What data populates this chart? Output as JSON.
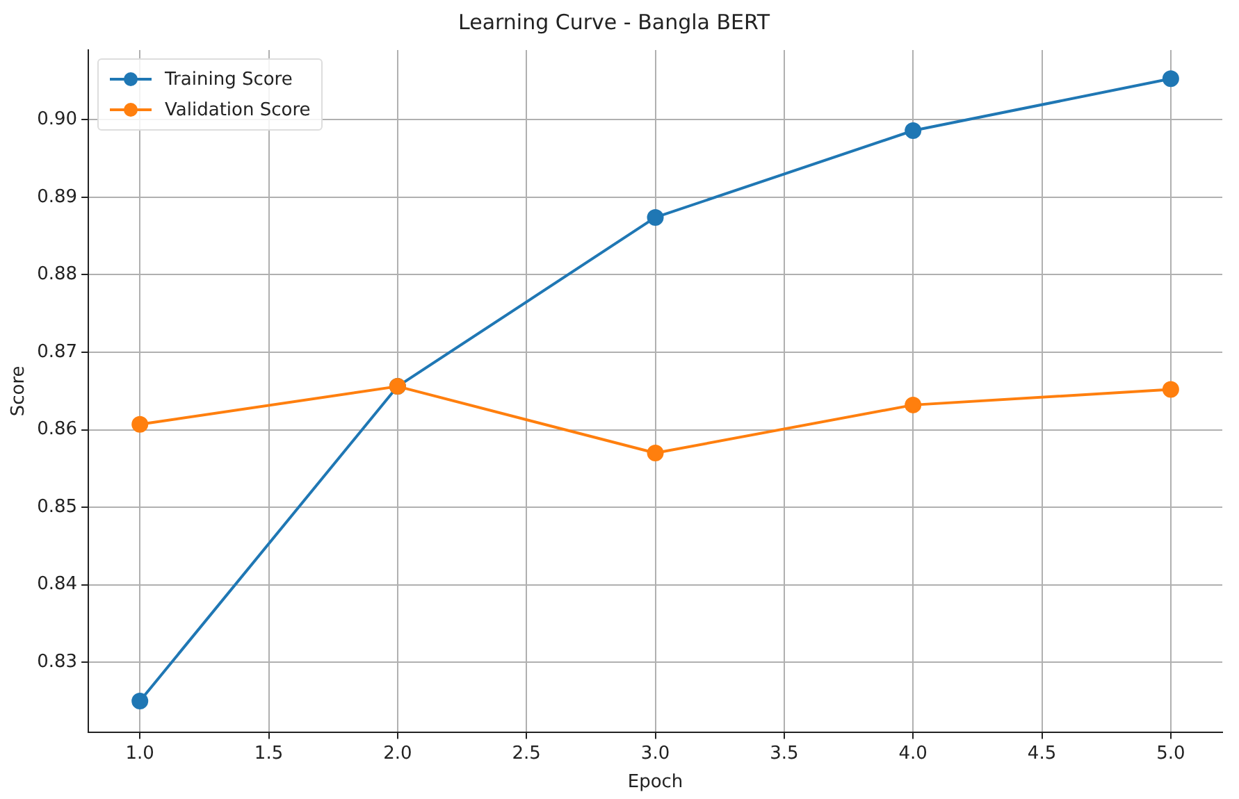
{
  "chart_data": {
    "type": "line",
    "title": "Learning Curve - Bangla BERT",
    "xlabel": "Epoch",
    "ylabel": "Score",
    "x": [
      1,
      2,
      3,
      4,
      5
    ],
    "series": [
      {
        "name": "Training Score",
        "color": "#1f77b4",
        "values": [
          0.825,
          0.8656,
          0.8874,
          0.8986,
          0.9053
        ]
      },
      {
        "name": "Validation Score",
        "color": "#ff7f0e",
        "values": [
          0.8607,
          0.8656,
          0.857,
          0.8632,
          0.8652
        ]
      }
    ],
    "xlim": [
      0.8,
      5.2
    ],
    "xticks": [
      {
        "value": 1,
        "label": "1.0"
      },
      {
        "value": 1.5,
        "label": "1.5"
      },
      {
        "value": 2,
        "label": "2.0"
      },
      {
        "value": 2.5,
        "label": "2.5"
      },
      {
        "value": 3,
        "label": "3.0"
      },
      {
        "value": 3.5,
        "label": "3.5"
      },
      {
        "value": 4,
        "label": "4.0"
      },
      {
        "value": 4.5,
        "label": "4.5"
      },
      {
        "value": 5,
        "label": "5.0"
      }
    ],
    "ylim": [
      0.821,
      0.909
    ],
    "yticks": [
      {
        "value": 0.83,
        "label": "0.83"
      },
      {
        "value": 0.84,
        "label": "0.84"
      },
      {
        "value": 0.85,
        "label": "0.85"
      },
      {
        "value": 0.86,
        "label": "0.86"
      },
      {
        "value": 0.87,
        "label": "0.87"
      },
      {
        "value": 0.88,
        "label": "0.88"
      },
      {
        "value": 0.89,
        "label": "0.89"
      },
      {
        "value": 0.9,
        "label": "0.90"
      }
    ],
    "grid": true,
    "legend": "top left",
    "marker": "circle",
    "line_style": "solid"
  }
}
